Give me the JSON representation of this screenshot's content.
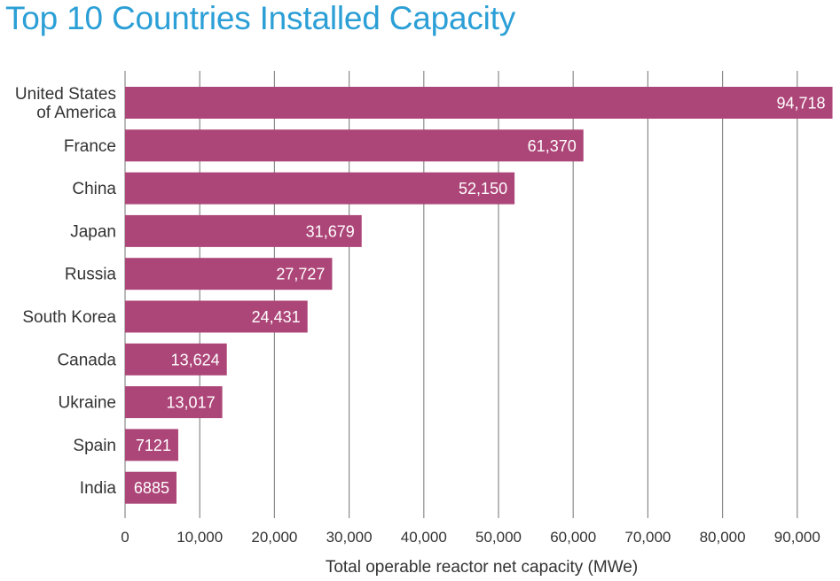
{
  "chart_data": {
    "type": "bar",
    "orientation": "horizontal",
    "title": "Top 10 Countries Installed Capacity",
    "xlabel": "Total operable reactor net capacity (MWe)",
    "ylabel": "",
    "xlim": [
      0,
      95000
    ],
    "grid": true,
    "bar_color": "#ad4678",
    "grid_color": "#8a8a8a",
    "categories": [
      [
        "United States",
        "of America"
      ],
      [
        "France"
      ],
      [
        "China"
      ],
      [
        "Japan"
      ],
      [
        "Russia"
      ],
      [
        "South Korea"
      ],
      [
        "Canada"
      ],
      [
        "Ukraine"
      ],
      [
        "Spain"
      ],
      [
        "India"
      ]
    ],
    "values": [
      94718,
      61370,
      52150,
      31679,
      27727,
      24431,
      13624,
      13017,
      7121,
      6885
    ],
    "value_labels": [
      "94,718",
      "61,370",
      "52,150",
      "31,679",
      "27,727",
      "24,431",
      "13,624",
      "13,017",
      "7121",
      "6885"
    ],
    "x_ticks": [
      0,
      10000,
      20000,
      30000,
      40000,
      50000,
      60000,
      70000,
      80000,
      90000
    ],
    "x_tick_labels": [
      "0",
      "10,000",
      "20,000",
      "30,000",
      "40,000",
      "50,000",
      "60,000",
      "70,000",
      "80,000",
      "90,000"
    ]
  }
}
